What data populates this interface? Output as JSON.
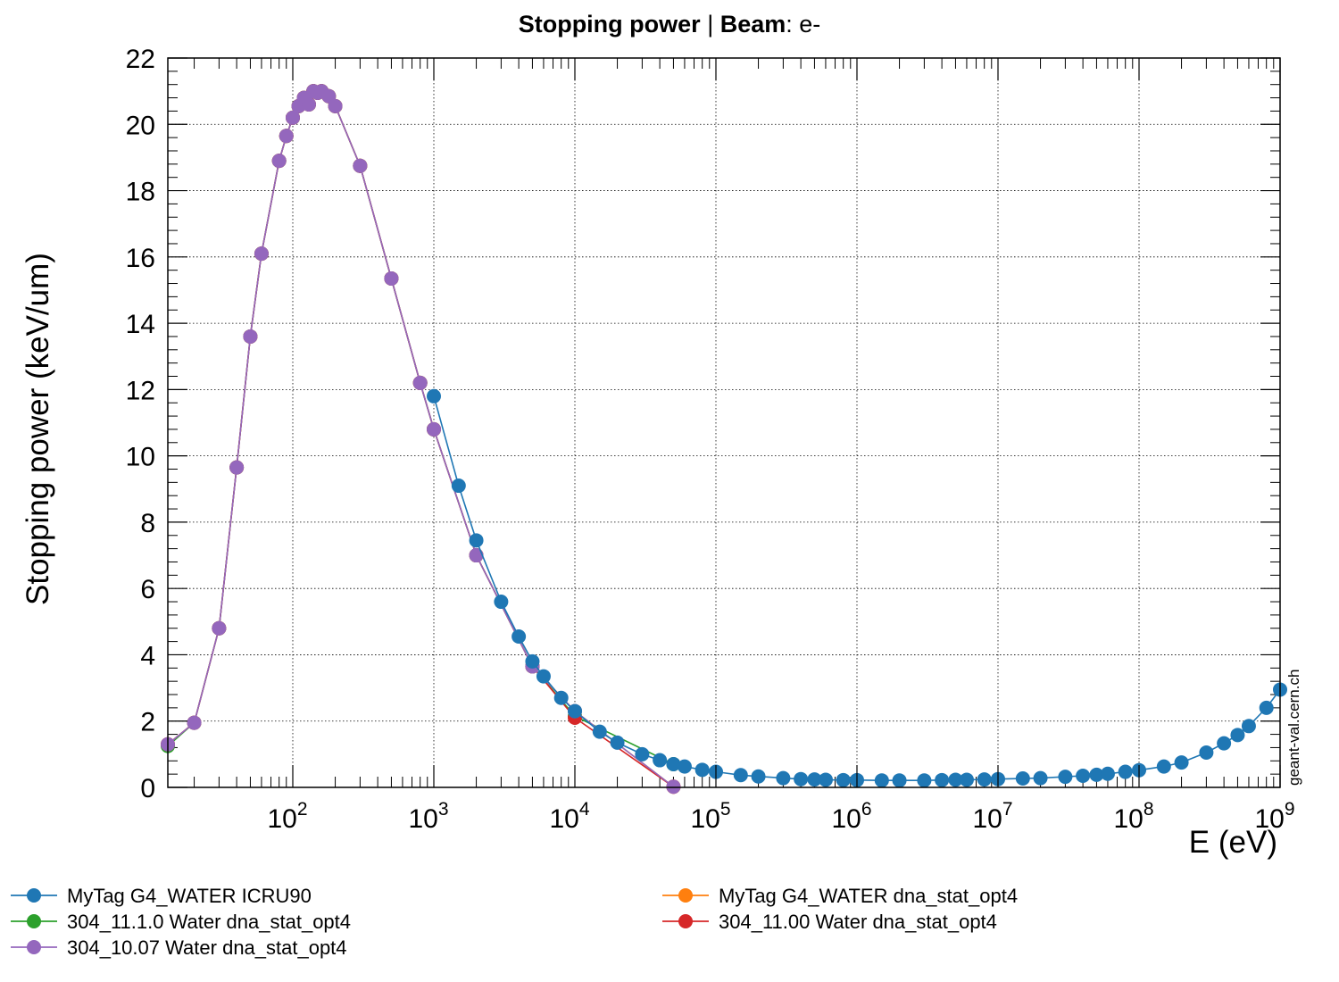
{
  "chart_data": {
    "type": "line",
    "title_bold": "Stopping power",
    "title_sep": " | ",
    "title_beam_label": "Beam",
    "title_beam_value": ": e-",
    "xlabel": "E (eV)",
    "ylabel": "Stopping power (keV/um)",
    "xscale": "log",
    "xlim": [
      13,
      1000000000
    ],
    "ylim": [
      0,
      22
    ],
    "grid": true,
    "x_tick_labels": [
      {
        "base": "10",
        "exp": "2",
        "value": 100
      },
      {
        "base": "10",
        "exp": "3",
        "value": 1000
      },
      {
        "base": "10",
        "exp": "4",
        "value": 10000
      },
      {
        "base": "10",
        "exp": "5",
        "value": 100000
      },
      {
        "base": "10",
        "exp": "6",
        "value": 1000000
      },
      {
        "base": "10",
        "exp": "7",
        "value": 10000000
      },
      {
        "base": "10",
        "exp": "8",
        "value": 100000000
      },
      {
        "base": "10",
        "exp": "9",
        "value": 1000000000
      }
    ],
    "y_ticks": [
      0,
      2,
      4,
      6,
      8,
      10,
      12,
      14,
      16,
      18,
      20,
      22
    ],
    "legend_placement": "bottom",
    "watermark": "geant-val.cern.ch",
    "series": [
      {
        "name": "MyTag G4_WATER ICRU90",
        "color": "#1f77b4",
        "x": [
          1000,
          1500,
          2000,
          3000,
          4000,
          5000,
          6000,
          8000,
          10000,
          15000,
          20000,
          30000,
          40000,
          50000,
          60000,
          80000,
          100000,
          150000,
          200000,
          300000,
          400000,
          500000,
          600000,
          800000,
          1000000,
          1500000,
          2000000,
          3000000,
          4000000,
          5000000,
          6000000,
          8000000,
          10000000,
          15000000,
          20000000,
          30000000,
          40000000,
          50000000,
          60000000,
          80000000,
          100000000,
          150000000,
          200000000,
          300000000,
          400000000,
          500000000,
          600000000,
          800000000,
          1000000000
        ],
        "y": [
          11.8,
          9.1,
          7.45,
          5.6,
          4.55,
          3.8,
          3.35,
          2.7,
          2.3,
          1.68,
          1.35,
          1.0,
          0.82,
          0.7,
          0.63,
          0.53,
          0.47,
          0.37,
          0.33,
          0.28,
          0.25,
          0.24,
          0.23,
          0.22,
          0.22,
          0.21,
          0.21,
          0.21,
          0.22,
          0.23,
          0.23,
          0.24,
          0.25,
          0.27,
          0.28,
          0.32,
          0.35,
          0.38,
          0.41,
          0.47,
          0.52,
          0.63,
          0.75,
          1.05,
          1.33,
          1.58,
          1.85,
          2.4,
          2.95
        ]
      },
      {
        "name": "MyTag G4_WATER dna_stat_opt4",
        "color": "#ff7f0e",
        "x": [
          13,
          20,
          30,
          40,
          50,
          60,
          80,
          90,
          100,
          110,
          120,
          130,
          140,
          150,
          160,
          180,
          200,
          300,
          500,
          800,
          1000,
          2000,
          5000,
          10000,
          50000
        ],
        "y": [
          1.3,
          1.95,
          4.8,
          9.65,
          13.6,
          16.1,
          18.9,
          19.65,
          20.2,
          20.55,
          20.8,
          20.6,
          21.0,
          20.95,
          21.0,
          20.85,
          20.55,
          18.75,
          15.35,
          12.2,
          10.8,
          7.0,
          3.65,
          2.3,
          0.02
        ]
      },
      {
        "name": "304_11.1.0 Water dna_stat_opt4",
        "color": "#2ca02c",
        "x": [
          13,
          20,
          30,
          40,
          50,
          60,
          80,
          90,
          100,
          110,
          120,
          130,
          140,
          150,
          160,
          180,
          200,
          300,
          500,
          800,
          1000,
          2000,
          5000,
          10000,
          50000
        ],
        "y": [
          1.25,
          1.95,
          4.8,
          9.65,
          13.6,
          16.1,
          18.9,
          19.65,
          20.2,
          20.55,
          20.8,
          20.6,
          21.0,
          20.95,
          21.0,
          20.85,
          20.55,
          18.75,
          15.35,
          12.2,
          10.8,
          7.0,
          3.65,
          2.15,
          0.7
        ]
      },
      {
        "name": "304_11.00 Water dna_stat_opt4",
        "color": "#d62728",
        "x": [
          13,
          20,
          30,
          40,
          50,
          60,
          80,
          90,
          100,
          110,
          120,
          130,
          140,
          150,
          160,
          180,
          200,
          300,
          500,
          800,
          1000,
          2000,
          5000,
          10000,
          50000
        ],
        "y": [
          1.3,
          1.95,
          4.8,
          9.65,
          13.6,
          16.1,
          18.9,
          19.65,
          20.2,
          20.55,
          20.8,
          20.6,
          21.0,
          20.95,
          21.0,
          20.85,
          20.55,
          18.75,
          15.35,
          12.2,
          10.8,
          7.0,
          3.65,
          2.1,
          0.02
        ]
      },
      {
        "name": "304_10.07 Water dna_stat_opt4",
        "color": "#9467bd",
        "x": [
          13,
          20,
          30,
          40,
          50,
          60,
          80,
          90,
          100,
          110,
          120,
          130,
          140,
          150,
          160,
          180,
          200,
          300,
          500,
          800,
          1000,
          2000,
          5000,
          10000,
          50000
        ],
        "y": [
          1.3,
          1.95,
          4.8,
          9.65,
          13.6,
          16.1,
          18.9,
          19.65,
          20.2,
          20.55,
          20.8,
          20.6,
          21.0,
          20.95,
          21.0,
          20.85,
          20.55,
          18.75,
          15.35,
          12.2,
          10.8,
          7.0,
          3.65,
          2.3,
          0.02
        ]
      }
    ],
    "legend_order": [
      0,
      1,
      2,
      3,
      4
    ]
  }
}
